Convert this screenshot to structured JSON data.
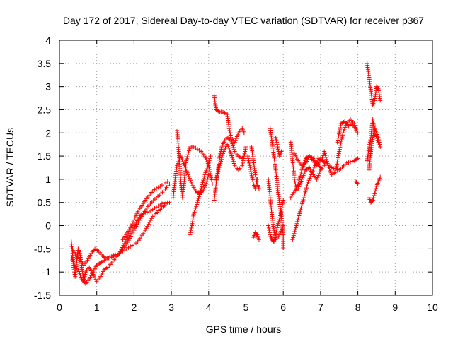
{
  "chart_data": {
    "type": "scatter",
    "title": "Day 172 of 2017, Sidereal Day-to-day VTEC variation (SDTVAR) for receiver p367",
    "xlabel": "GPS time / hours",
    "ylabel": "SDTVAR / TECUs",
    "xlim": [
      0,
      10
    ],
    "ylim": [
      -1.5,
      4
    ],
    "x_ticks": [
      0,
      1,
      2,
      3,
      4,
      5,
      6,
      7,
      8,
      9,
      10
    ],
    "y_ticks": [
      -1.5,
      -1,
      -0.5,
      0,
      0.5,
      1,
      1.5,
      2,
      2.5,
      3,
      3.5,
      4
    ],
    "x_tick_labels": [
      "0",
      "1",
      "2",
      "3",
      "4",
      "5",
      "6",
      "7",
      "8",
      "9",
      "10"
    ],
    "y_tick_labels": [
      "-1.5",
      "-1",
      "-0.5",
      "0",
      "0.5",
      "1",
      "1.5",
      "2",
      "2.5",
      "3",
      "3.5",
      "4"
    ],
    "grid": true,
    "marker": "+",
    "series_color": "#ff0000",
    "series": [
      {
        "name": "SDTVAR",
        "segments": [
          [
            [
              0.32,
              -0.35
            ],
            [
              0.35,
              -0.6
            ],
            [
              0.38,
              -0.9
            ],
            [
              0.42,
              -1.1
            ],
            [
              0.46,
              -0.8
            ],
            [
              0.5,
              -0.5
            ],
            [
              0.55,
              -0.6
            ],
            [
              0.6,
              -0.9
            ],
            [
              0.65,
              -1.2
            ],
            [
              0.7,
              -1.0
            ],
            [
              0.8,
              -0.9
            ],
            [
              0.9,
              -1.05
            ],
            [
              1.0,
              -1.2
            ],
            [
              1.1,
              -1.1
            ],
            [
              1.2,
              -0.95
            ],
            [
              1.3,
              -0.9
            ],
            [
              1.4,
              -0.8
            ],
            [
              1.5,
              -0.7
            ],
            [
              1.6,
              -0.6
            ],
            [
              1.8,
              -0.4
            ],
            [
              2.0,
              -0.1
            ],
            [
              2.2,
              0.2
            ],
            [
              2.4,
              0.45
            ],
            [
              2.6,
              0.6
            ],
            [
              2.8,
              0.75
            ],
            [
              2.95,
              0.9
            ]
          ],
          [
            [
              0.33,
              -0.7
            ],
            [
              0.4,
              -0.85
            ],
            [
              0.5,
              -0.95
            ],
            [
              0.6,
              -1.15
            ],
            [
              0.7,
              -1.25
            ],
            [
              0.8,
              -1.15
            ],
            [
              0.9,
              -1.0
            ],
            [
              1.0,
              -0.85
            ],
            [
              1.1,
              -0.8
            ],
            [
              1.2,
              -0.75
            ],
            [
              1.4,
              -0.65
            ],
            [
              1.6,
              -0.6
            ],
            [
              1.8,
              -0.3
            ],
            [
              2.0,
              0.0
            ],
            [
              2.2,
              0.25
            ],
            [
              2.4,
              0.3
            ],
            [
              2.6,
              0.4
            ],
            [
              2.8,
              0.5
            ],
            [
              2.95,
              0.5
            ]
          ],
          [
            [
              0.35,
              -0.5
            ],
            [
              0.45,
              -0.65
            ],
            [
              0.55,
              -0.75
            ],
            [
              0.65,
              -0.85
            ],
            [
              0.75,
              -0.75
            ],
            [
              0.85,
              -0.6
            ],
            [
              0.95,
              -0.5
            ],
            [
              1.05,
              -0.55
            ],
            [
              1.15,
              -0.65
            ],
            [
              1.25,
              -0.7
            ],
            [
              1.35,
              -0.7
            ],
            [
              1.5,
              -0.65
            ],
            [
              1.7,
              -0.55
            ],
            [
              1.9,
              -0.45
            ],
            [
              2.1,
              -0.35
            ],
            [
              2.3,
              -0.1
            ],
            [
              2.5,
              0.2
            ],
            [
              2.7,
              0.35
            ],
            [
              2.9,
              0.5
            ]
          ],
          [
            [
              1.7,
              -0.3
            ],
            [
              1.9,
              -0.05
            ],
            [
              2.1,
              0.3
            ],
            [
              2.3,
              0.55
            ],
            [
              2.5,
              0.75
            ],
            [
              2.7,
              0.85
            ],
            [
              2.9,
              0.95
            ]
          ],
          [
            [
              3.15,
              2.05
            ],
            [
              3.2,
              1.6
            ],
            [
              3.25,
              1.0
            ],
            [
              3.3,
              0.6
            ],
            [
              3.35,
              1.0
            ],
            [
              3.4,
              1.4
            ],
            [
              3.5,
              1.7
            ],
            [
              3.6,
              1.7
            ],
            [
              3.8,
              1.6
            ],
            [
              3.9,
              1.5
            ],
            [
              4.0,
              1.3
            ],
            [
              4.1,
              0.9
            ]
          ],
          [
            [
              3.05,
              0.6
            ],
            [
              3.1,
              1.0
            ],
            [
              3.15,
              1.3
            ],
            [
              3.25,
              1.5
            ],
            [
              3.35,
              1.3
            ],
            [
              3.45,
              1.1
            ],
            [
              3.55,
              0.9
            ],
            [
              3.65,
              0.75
            ],
            [
              3.75,
              0.7
            ],
            [
              3.85,
              0.75
            ],
            [
              3.95,
              0.95
            ],
            [
              4.0,
              1.1
            ]
          ],
          [
            [
              3.5,
              -0.2
            ],
            [
              3.55,
              0.0
            ],
            [
              3.6,
              0.25
            ],
            [
              3.7,
              0.5
            ],
            [
              3.8,
              0.8
            ],
            [
              3.9,
              1.1
            ],
            [
              4.0,
              1.35
            ],
            [
              4.05,
              1.5
            ]
          ],
          [
            [
              4.15,
              2.8
            ],
            [
              4.2,
              2.5
            ],
            [
              4.3,
              2.45
            ],
            [
              4.4,
              2.45
            ],
            [
              4.5,
              2.4
            ],
            [
              4.55,
              2.1
            ],
            [
              4.6,
              1.9
            ],
            [
              4.7,
              1.8
            ],
            [
              4.8,
              2.0
            ],
            [
              4.9,
              2.1
            ],
            [
              4.95,
              2.0
            ]
          ],
          [
            [
              4.15,
              0.55
            ],
            [
              4.2,
              0.9
            ],
            [
              4.25,
              1.2
            ],
            [
              4.3,
              1.5
            ],
            [
              4.35,
              1.7
            ],
            [
              4.4,
              1.8
            ],
            [
              4.5,
              1.9
            ],
            [
              4.6,
              1.85
            ],
            [
              4.7,
              1.6
            ],
            [
              4.8,
              1.5
            ],
            [
              4.9,
              1.45
            ]
          ],
          [
            [
              4.2,
              1.0
            ],
            [
              4.3,
              1.3
            ],
            [
              4.4,
              1.6
            ],
            [
              4.5,
              1.75
            ],
            [
              4.6,
              1.55
            ],
            [
              4.7,
              1.3
            ],
            [
              4.8,
              1.2
            ],
            [
              4.9,
              1.3
            ],
            [
              4.95,
              1.5
            ],
            [
              5.0,
              1.7
            ]
          ],
          [
            [
              5.15,
              1.7
            ],
            [
              5.2,
              1.4
            ],
            [
              5.25,
              1.1
            ],
            [
              5.3,
              0.9
            ],
            [
              5.35,
              0.8
            ]
          ],
          [
            [
              5.2,
              -0.25
            ],
            [
              5.25,
              -0.15
            ],
            [
              5.3,
              -0.2
            ],
            [
              5.35,
              -0.3
            ]
          ],
          [
            [
              5.05,
              1.5
            ],
            [
              5.1,
              1.3
            ],
            [
              5.2,
              0.9
            ],
            [
              5.25,
              0.8
            ],
            [
              5.3,
              1.0
            ]
          ],
          [
            [
              5.65,
              2.1
            ],
            [
              5.7,
              1.8
            ],
            [
              5.75,
              1.5
            ],
            [
              5.8,
              1.2
            ],
            [
              5.85,
              0.8
            ],
            [
              5.9,
              0.5
            ],
            [
              5.95,
              0.2
            ],
            [
              6.0,
              -0.2
            ],
            [
              6.0,
              -0.48
            ]
          ],
          [
            [
              5.6,
              1.0
            ],
            [
              5.65,
              0.6
            ],
            [
              5.7,
              0.2
            ],
            [
              5.75,
              -0.1
            ],
            [
              5.8,
              -0.3
            ],
            [
              5.9,
              -0.2
            ],
            [
              6.0,
              0.0
            ]
          ],
          [
            [
              5.6,
              0.0
            ],
            [
              5.65,
              -0.2
            ],
            [
              5.7,
              -0.3
            ],
            [
              5.75,
              -0.35
            ],
            [
              5.85,
              0.0
            ],
            [
              5.95,
              0.3
            ],
            [
              6.0,
              0.55
            ]
          ],
          [
            [
              5.8,
              1.9
            ],
            [
              5.85,
              1.7
            ],
            [
              5.9,
              1.5
            ],
            [
              5.95,
              1.6
            ]
          ],
          [
            [
              6.2,
              1.8
            ],
            [
              6.25,
              1.4
            ],
            [
              6.3,
              1.0
            ],
            [
              6.35,
              0.8
            ],
            [
              6.4,
              0.9
            ],
            [
              6.5,
              1.2
            ],
            [
              6.6,
              1.45
            ],
            [
              6.7,
              1.5
            ],
            [
              6.8,
              1.4
            ],
            [
              6.9,
              1.3
            ],
            [
              7.0,
              1.4
            ],
            [
              7.1,
              1.55
            ]
          ],
          [
            [
              6.2,
              0.6
            ],
            [
              6.3,
              0.75
            ],
            [
              6.4,
              0.8
            ],
            [
              6.5,
              1.0
            ],
            [
              6.6,
              1.2
            ],
            [
              6.7,
              1.25
            ],
            [
              6.8,
              1.1
            ],
            [
              6.9,
              1.0
            ],
            [
              7.0,
              1.2
            ],
            [
              7.1,
              1.3
            ]
          ],
          [
            [
              6.25,
              -0.3
            ],
            [
              6.35,
              0.0
            ],
            [
              6.45,
              0.3
            ],
            [
              6.55,
              0.6
            ],
            [
              6.65,
              0.9
            ],
            [
              6.75,
              1.1
            ],
            [
              6.85,
              1.3
            ],
            [
              6.95,
              1.45
            ],
            [
              7.05,
              1.4
            ],
            [
              7.15,
              1.35
            ],
            [
              7.3,
              1.25
            ],
            [
              7.5,
              1.2
            ],
            [
              7.7,
              1.35
            ],
            [
              7.9,
              1.4
            ],
            [
              8.0,
              1.45
            ]
          ],
          [
            [
              6.3,
              1.55
            ],
            [
              6.4,
              1.4
            ],
            [
              6.5,
              1.3
            ],
            [
              6.6,
              1.35
            ],
            [
              6.7,
              1.5
            ],
            [
              6.8,
              1.45
            ],
            [
              6.9,
              1.35
            ],
            [
              7.0,
              1.25
            ]
          ],
          [
            [
              7.1,
              1.6
            ],
            [
              7.2,
              1.3
            ],
            [
              7.3,
              1.1
            ],
            [
              7.4,
              1.15
            ],
            [
              7.5,
              1.6
            ],
            [
              7.6,
              2.0
            ],
            [
              7.7,
              2.2
            ],
            [
              7.8,
              2.3
            ],
            [
              7.9,
              2.2
            ],
            [
              8.0,
              2.0
            ]
          ],
          [
            [
              7.45,
              1.8
            ],
            [
              7.55,
              2.2
            ],
            [
              7.65,
              2.25
            ],
            [
              7.75,
              2.15
            ],
            [
              7.85,
              2.2
            ],
            [
              7.95,
              2.05
            ]
          ],
          [
            [
              7.95,
              0.95
            ],
            [
              8.0,
              0.9
            ]
          ],
          [
            [
              8.25,
              3.5
            ],
            [
              8.3,
              3.2
            ],
            [
              8.35,
              2.9
            ],
            [
              8.4,
              2.6
            ],
            [
              8.45,
              2.7
            ],
            [
              8.5,
              3.0
            ],
            [
              8.55,
              2.95
            ],
            [
              8.6,
              2.7
            ]
          ],
          [
            [
              8.3,
              1.2
            ],
            [
              8.35,
              1.6
            ],
            [
              8.4,
              1.9
            ],
            [
              8.45,
              2.1
            ],
            [
              8.5,
              2.0
            ],
            [
              8.55,
              1.9
            ],
            [
              8.6,
              1.7
            ]
          ],
          [
            [
              8.3,
              0.6
            ],
            [
              8.35,
              0.5
            ],
            [
              8.4,
              0.55
            ],
            [
              8.45,
              0.7
            ],
            [
              8.5,
              0.85
            ],
            [
              8.55,
              0.95
            ],
            [
              8.6,
              1.05
            ]
          ],
          [
            [
              8.25,
              1.4
            ],
            [
              8.3,
              1.7
            ],
            [
              8.35,
              1.9
            ],
            [
              8.4,
              2.3
            ],
            [
              8.45,
              2.0
            ],
            [
              8.55,
              1.8
            ]
          ]
        ]
      }
    ]
  }
}
